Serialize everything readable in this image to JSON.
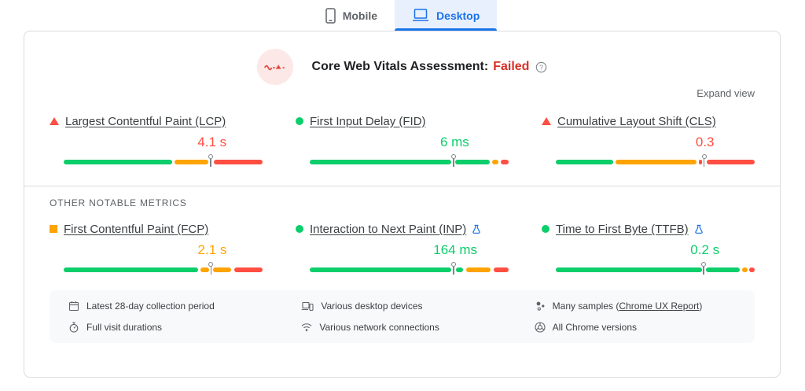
{
  "tabs": [
    {
      "label": "Mobile",
      "active": false
    },
    {
      "label": "Desktop",
      "active": true
    }
  ],
  "assessment": {
    "title": "Core Web Vitals Assessment:",
    "result": "Failed"
  },
  "expand_view_label": "Expand view",
  "section_label": "OTHER NOTABLE METRICS",
  "colors": {
    "good": "#0cce6b",
    "average": "#ffa400",
    "poor": "#ff4e42",
    "accent": "#1a73e8"
  },
  "metrics": [
    {
      "label": "Largest Contentful Paint (LCP)",
      "value": "4.1 s",
      "status": "poor",
      "experimental": false,
      "marker": 74,
      "segments": [
        {
          "color": "good",
          "start": 0,
          "end": 54.5
        },
        {
          "color": "average",
          "start": 55.8,
          "end": 72.8
        },
        {
          "color": "poor",
          "start": 75.4,
          "end": 100
        }
      ]
    },
    {
      "label": "First Input Delay (FID)",
      "value": "6 ms",
      "status": "good",
      "experimental": false,
      "marker": 72.3,
      "segments": [
        {
          "color": "good",
          "start": 0,
          "end": 71.3
        },
        {
          "color": "good",
          "start": 73.3,
          "end": 90.5
        },
        {
          "color": "average",
          "start": 91.8,
          "end": 95
        },
        {
          "color": "poor",
          "start": 96.2,
          "end": 100
        }
      ]
    },
    {
      "label": "Cumulative Layout Shift (CLS)",
      "value": "0.3",
      "status": "poor",
      "experimental": false,
      "marker": 74.6,
      "segments": [
        {
          "color": "good",
          "start": 0,
          "end": 29
        },
        {
          "color": "average",
          "start": 30.2,
          "end": 70.6
        },
        {
          "color": "poor",
          "start": 71.8,
          "end": 73.4
        },
        {
          "color": "poor",
          "start": 76,
          "end": 100
        }
      ]
    },
    {
      "label": "First Contentful Paint (FCP)",
      "value": "2.1 s",
      "status": "average",
      "experimental": false,
      "marker": 74.1,
      "segments": [
        {
          "color": "good",
          "start": 0,
          "end": 67.4
        },
        {
          "color": "average",
          "start": 68.6,
          "end": 73
        },
        {
          "color": "average",
          "start": 75.2,
          "end": 84
        },
        {
          "color": "poor",
          "start": 85.8,
          "end": 100
        }
      ]
    },
    {
      "label": "Interaction to Next Paint (INP)",
      "value": "164 ms",
      "status": "good",
      "experimental": true,
      "marker": 72.3,
      "segments": [
        {
          "color": "good",
          "start": 0,
          "end": 71.3
        },
        {
          "color": "good",
          "start": 73.4,
          "end": 77.2
        },
        {
          "color": "average",
          "start": 78.6,
          "end": 91
        },
        {
          "color": "poor",
          "start": 92.6,
          "end": 100
        }
      ]
    },
    {
      "label": "Time to First Byte (TTFB)",
      "value": "0.2 s",
      "status": "good",
      "experimental": true,
      "marker": 74.4,
      "segments": [
        {
          "color": "good",
          "start": 0,
          "end": 73.4
        },
        {
          "color": "good",
          "start": 75.6,
          "end": 92.6
        },
        {
          "color": "average",
          "start": 93.6,
          "end": 96.4
        },
        {
          "color": "poor",
          "start": 97.4,
          "end": 100
        }
      ]
    }
  ],
  "footer": {
    "items": [
      {
        "icon": "calendar",
        "text": "Latest 28-day collection period"
      },
      {
        "icon": "devices",
        "text": "Various desktop devices"
      },
      {
        "icon": "samples",
        "text_prefix": "Many samples (",
        "link_label": "Chrome UX Report",
        "text_suffix": ")"
      },
      {
        "icon": "stopwatch",
        "text": "Full visit durations"
      },
      {
        "icon": "network",
        "text": "Various network connections"
      },
      {
        "icon": "chrome",
        "text": "All Chrome versions"
      }
    ]
  }
}
